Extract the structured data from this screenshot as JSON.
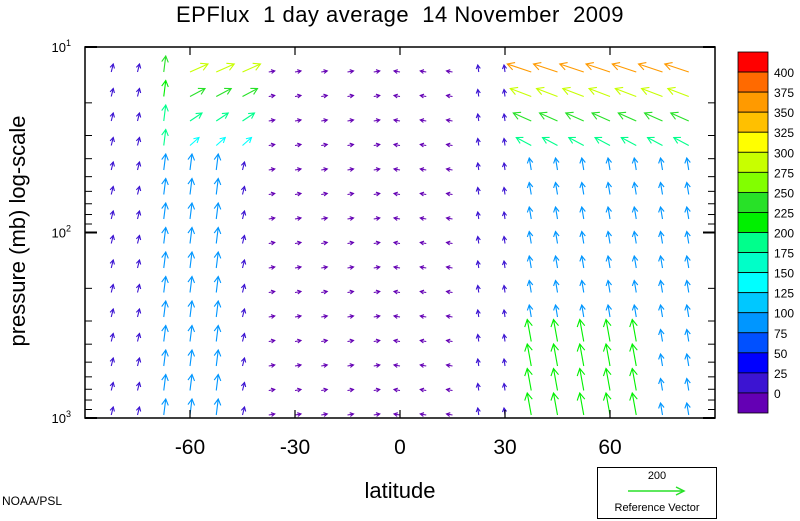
{
  "chart_data": {
    "type": "vector-field",
    "title": "EPFlux  1 day average  14 November  2009",
    "xlabel": "latitude",
    "ylabel": "pressure (mb)  log-scale",
    "x_ticks": [
      -60,
      -30,
      0,
      30,
      60
    ],
    "x_tick_labels": [
      "-60",
      "-30",
      "0",
      "30",
      "60"
    ],
    "xlim": [
      -90,
      90
    ],
    "y_scale": "log",
    "ylim": [
      1000,
      10
    ],
    "y_tick_labels": [
      {
        "base": "10",
        "exp": "1",
        "value": 10
      },
      {
        "base": "10",
        "exp": "2",
        "value": 100
      },
      {
        "base": "10",
        "exp": "3",
        "value": 1000
      }
    ],
    "colorbar": {
      "levels": [
        0,
        25,
        50,
        75,
        100,
        125,
        150,
        175,
        200,
        225,
        250,
        275,
        300,
        325,
        350,
        375,
        400
      ],
      "labels": [
        "400",
        "375",
        "350",
        "325",
        "300",
        "275",
        "250",
        "225",
        "200",
        "175",
        "150",
        "125",
        "100",
        "75",
        "50",
        "25",
        "0"
      ],
      "colors": [
        "#ff0000",
        "#ff6a00",
        "#ff9a00",
        "#ffc000",
        "#ffff00",
        "#c8ff00",
        "#82ff00",
        "#28e128",
        "#00f000",
        "#00ff8c",
        "#00ffc8",
        "#00ffff",
        "#00c8ff",
        "#0096ff",
        "#0050ff",
        "#0000ff",
        "#3c14d2",
        "#6400b4"
      ]
    },
    "reference_vector": {
      "value": "200",
      "label": "Reference Vector"
    }
  },
  "credit": "NOAA/PSL"
}
